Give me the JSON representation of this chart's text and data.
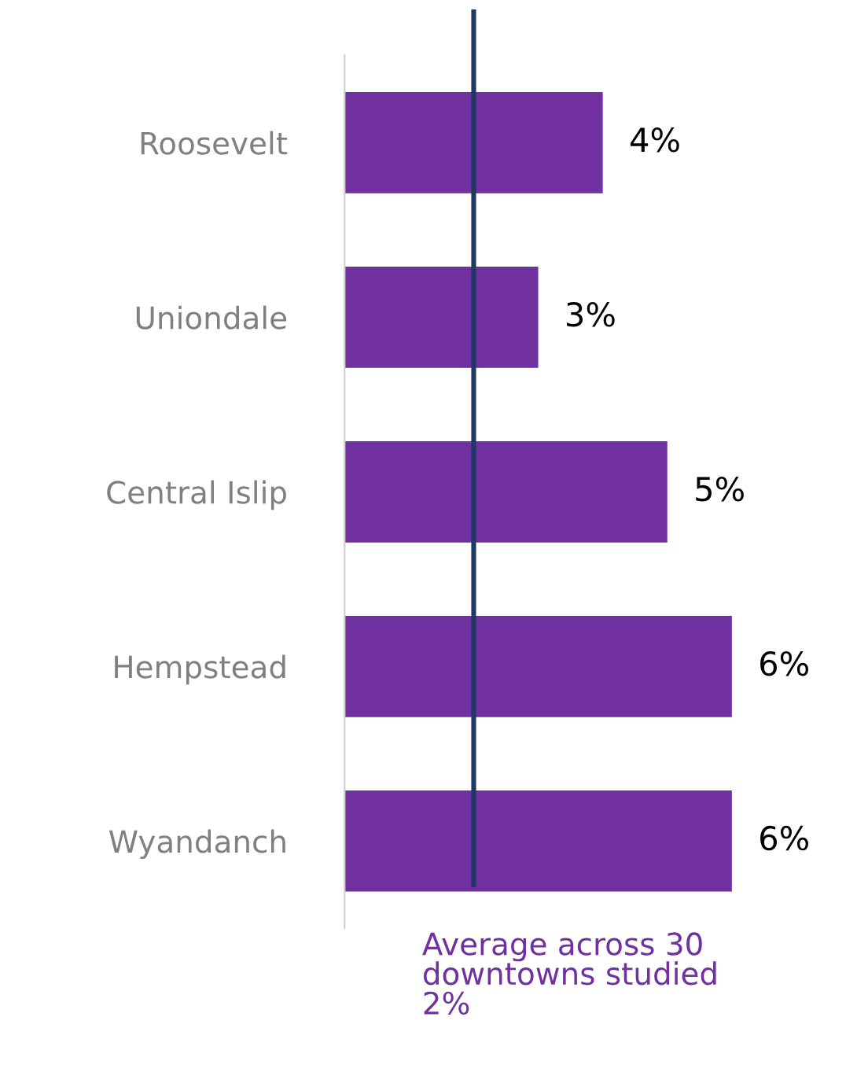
{
  "chart_data": {
    "type": "bar",
    "orientation": "horizontal",
    "categories": [
      "Roosevelt",
      "Uniondale",
      "Central Islip",
      "Hempstead",
      "Wyandanch"
    ],
    "values": [
      4,
      3,
      5,
      6,
      6
    ],
    "value_labels": [
      "4%",
      "3%",
      "5%",
      "6%",
      "6%"
    ],
    "color": "#7030a0",
    "tick_labels": "y",
    "grid": false,
    "legend": false,
    "ref_lines": [
      {
        "axis": "x",
        "value": 2,
        "label": "Average across 30\ndowntowns studied\n2%",
        "color": "#1f3864",
        "line_style": "solid"
      }
    ]
  }
}
